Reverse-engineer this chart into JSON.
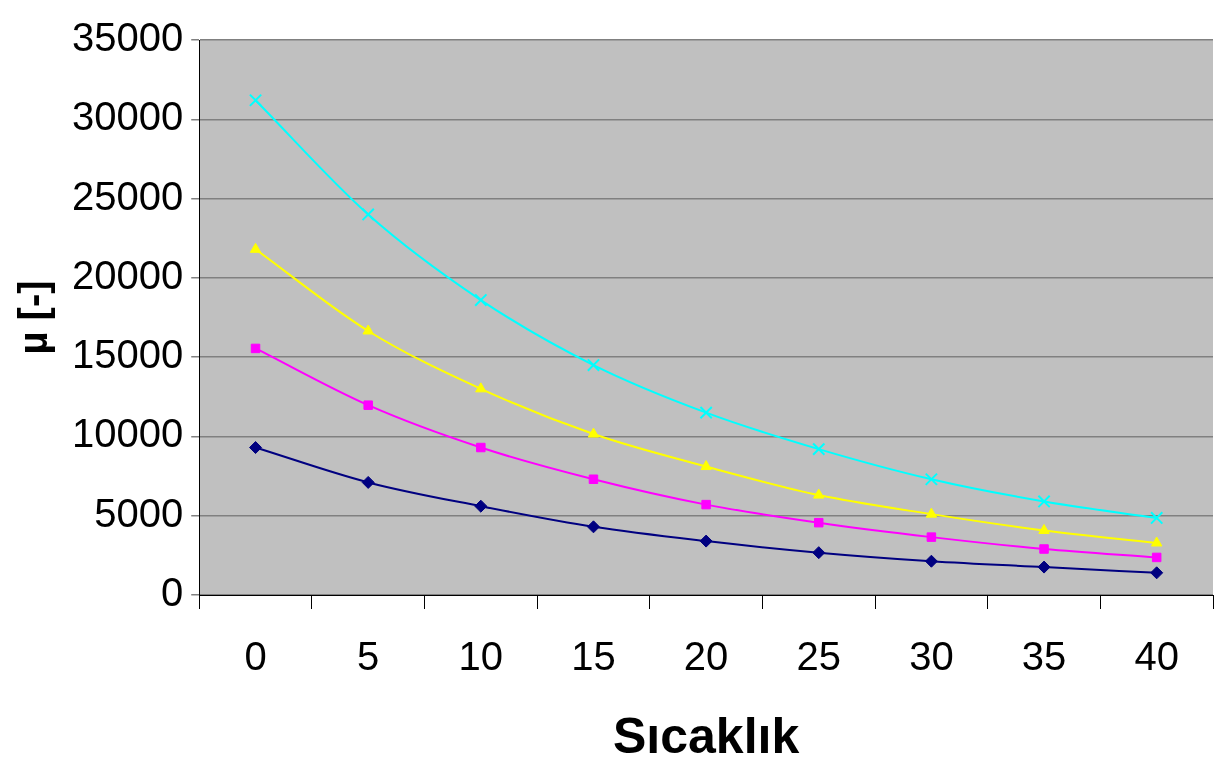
{
  "chart_data": {
    "type": "line",
    "xlabel": "Sıcaklık",
    "ylabel": "µ [-]",
    "categories": [
      "0",
      "5",
      "10",
      "15",
      "20",
      "25",
      "30",
      "35",
      "40"
    ],
    "ylim": [
      0,
      35000
    ],
    "yticks": [
      0,
      5000,
      10000,
      15000,
      20000,
      25000,
      30000,
      35000
    ],
    "grid": "y",
    "legend": false,
    "line_style": "solid",
    "series": [
      {
        "color": "#000080",
        "marker": "diamond",
        "values": [
          9300,
          7100,
          5600,
          4300,
          3400,
          2670,
          2130,
          1760,
          1400
        ]
      },
      {
        "color": "#ff00ff",
        "marker": "square",
        "values": [
          15550,
          11970,
          9300,
          7300,
          5700,
          4560,
          3650,
          2900,
          2370
        ]
      },
      {
        "color": "#ffff00",
        "marker": "triangle",
        "values": [
          21800,
          16650,
          13000,
          10150,
          8100,
          6300,
          5100,
          4070,
          3280
        ]
      },
      {
        "color": "#00ffff",
        "marker": "cross",
        "values": [
          31200,
          24000,
          18600,
          14500,
          11500,
          9200,
          7300,
          5900,
          4860
        ]
      }
    ]
  }
}
